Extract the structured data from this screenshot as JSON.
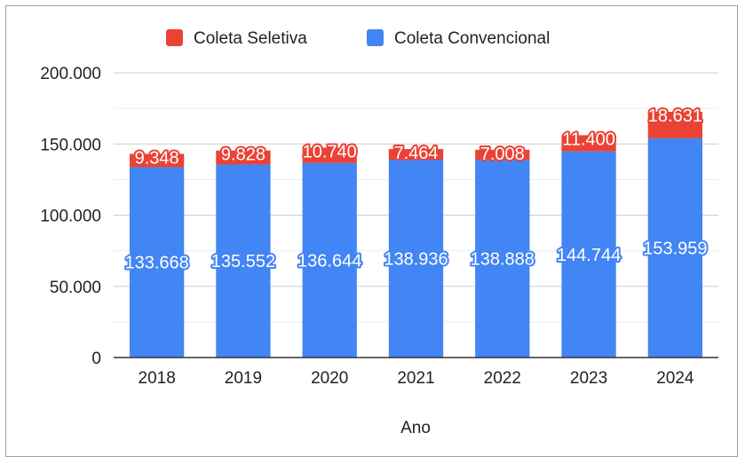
{
  "chart_data": {
    "type": "bar",
    "stacked": true,
    "categories": [
      "2018",
      "2019",
      "2020",
      "2021",
      "2022",
      "2023",
      "2024"
    ],
    "series": [
      {
        "name": "Coleta Convencional",
        "color": "#4285f4",
        "values": [
          133668,
          135552,
          136644,
          138936,
          138888,
          144744,
          153959
        ],
        "labels": [
          "133.668",
          "135.552",
          "136.644",
          "138.936",
          "138.888",
          "144.744",
          "153.959"
        ]
      },
      {
        "name": "Coleta Seletiva",
        "color": "#ea4335",
        "values": [
          9348,
          9828,
          10740,
          7464,
          7008,
          11400,
          18631
        ],
        "labels": [
          "9.348",
          "9.828",
          "10.740",
          "7.464",
          "7.008",
          "11.400",
          "18.631"
        ]
      }
    ],
    "legend": [
      {
        "name": "Coleta Seletiva",
        "color": "#ea4335"
      },
      {
        "name": "Coleta Convencional",
        "color": "#4285f4"
      }
    ],
    "legend_position": "top",
    "xlabel": "Ano",
    "ylabel": "",
    "ylim": [
      0,
      200000
    ],
    "yticks": [
      0,
      50000,
      100000,
      150000,
      200000
    ],
    "ytick_labels": [
      "0",
      "50.000",
      "100.000",
      "150.000",
      "200.000"
    ],
    "grid": true
  }
}
